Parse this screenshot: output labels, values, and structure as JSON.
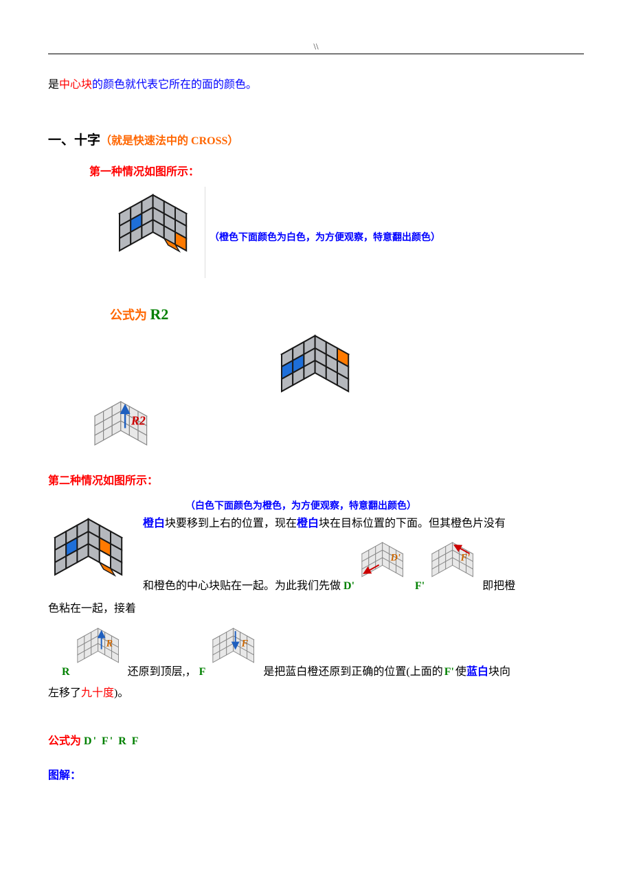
{
  "header": {
    "mark": "\\\\"
  },
  "intro": {
    "part1": "是",
    "part2": "中心块",
    "part3": "的颜色就代表它所在的面的颜色。"
  },
  "section1": {
    "heading_prefix": "一、十字",
    "heading_note": "（就是快速法中的 CROSS）",
    "case1": {
      "title": "第一种情况如图所示：",
      "note": "（橙色下面颜色为白色，为方便观察，特意翻出颜色）",
      "formula_label": "公式为",
      "formula_value": "R2",
      "cube_svg_label": "R2",
      "cube1": {
        "top_colors": [
          "#ffffff",
          "#ffffff",
          "#ffffff",
          "#ffffff",
          "#1e6fd9",
          "#ffffff",
          "#ffffff",
          "#ffffff",
          "#ffffff"
        ],
        "front_colors": [
          "#b5b8bd",
          "#b5b8bd",
          "#b5b8bd",
          "#b5b8bd",
          "#1e6fd9",
          "#b5b8bd",
          "#b5b8bd",
          "#b5b8bd",
          "#b5b8bd"
        ],
        "right_colors": [
          "#b5b8bd",
          "#b5b8bd",
          "#b5b8bd",
          "#b5b8bd",
          "#b5b8bd",
          "#b5b8bd",
          "#b5b8bd",
          "#b5b8bd",
          "#ff7a00"
        ],
        "flap_color": "#ff7a00"
      },
      "cube_result": {
        "top_colors": [
          "#ffffff",
          "#ffffff",
          "#ffffff",
          "#ffffff",
          "#ffffff",
          "#ffffff",
          "#ffffff",
          "#ffffff",
          "#ffffff"
        ],
        "front_colors": [
          "#b5b8bd",
          "#b5b8bd",
          "#b5b8bd",
          "#1e6fd9",
          "#1e6fd9",
          "#b5b8bd",
          "#b5b8bd",
          "#b5b8bd",
          "#b5b8bd"
        ],
        "right_colors": [
          "#b5b8bd",
          "#b5b8bd",
          "#ff7a00",
          "#b5b8bd",
          "#b5b8bd",
          "#b5b8bd",
          "#b5b8bd",
          "#b5b8bd",
          "#b5b8bd"
        ]
      },
      "notation_cube": {
        "label": "R2",
        "label_color": "#cc0000"
      }
    },
    "case2": {
      "title": "第二种情况如图所示：",
      "note": "（白色下面颜色为橙色，为方便观察，特意翻出颜色）",
      "text1a": "橙白",
      "text1b": "块要移到上右的位置，现在",
      "text1c": "橙白",
      "text1d": "块在目标位置的下面。但其橙色片没有",
      "text2a": "和橙色的中心块贴在一起。为此我们先做",
      "move_d": "D'",
      "move_f": "F'",
      "text2b": "即把橙色粘在一起，接着",
      "move_r": "R",
      "text3a": "还原到顶层,，",
      "move_f2": "F",
      "text3b": "是把蓝白橙还原到正确的位置(上面的",
      "move_f3": "F'",
      "text3c": "使",
      "text3d": "蓝白",
      "text3e": "块向左移了",
      "text3f": "九十度",
      "text3g": ")。",
      "formula_label": "公式为",
      "formula_value": "D'   F'   R   F",
      "diagram_label": "图解：",
      "cube2": {
        "top_colors": [
          "#ffffff",
          "#ffffff",
          "#ffffff",
          "#ffffff",
          "#ffffff",
          "#ffffff",
          "#ffffff",
          "#ffffff",
          "#ffffff"
        ],
        "front_colors": [
          "#b5b8bd",
          "#b5b8bd",
          "#b5b8bd",
          "#b5b8bd",
          "#1e6fd9",
          "#b5b8bd",
          "#b5b8bd",
          "#b5b8bd",
          "#b5b8bd"
        ],
        "right_colors": [
          "#b5b8bd",
          "#b5b8bd",
          "#b5b8bd",
          "#b5b8bd",
          "#ff7a00",
          "#b5b8bd",
          "#b5b8bd",
          "#ffffff",
          "#b5b8bd"
        ],
        "flap_color": "#ff7a00"
      },
      "notation": {
        "d_prime": {
          "label": "D'",
          "label_color": "#cc6600"
        },
        "f_prime": {
          "label": "F'",
          "label_color": "#cc6600"
        },
        "r": {
          "label": "R",
          "label_color": "#cc6600"
        },
        "f": {
          "label": "F",
          "label_color": "#cc6600"
        }
      }
    }
  }
}
